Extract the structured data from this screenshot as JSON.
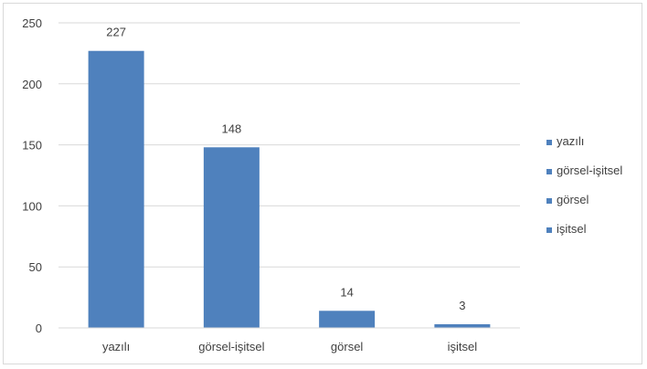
{
  "chart_data": {
    "type": "bar",
    "categories": [
      "yazılı",
      "görsel-işitsel",
      "görsel",
      "işitsel"
    ],
    "values": [
      227,
      148,
      14,
      3
    ],
    "ylim": [
      0,
      250
    ],
    "yticks": [
      0,
      50,
      100,
      150,
      200,
      250
    ],
    "grid": true,
    "legend": {
      "position": "right",
      "entries": [
        "yazılı",
        "görsel-işitsel",
        "görsel",
        "işitsel"
      ]
    },
    "data_labels": [
      "227",
      "148",
      "14",
      "3"
    ],
    "colors": {
      "bar": "#4f81bd",
      "grid": "#d9d9d9",
      "text": "#404040"
    },
    "title": "",
    "xlabel": "",
    "ylabel": ""
  }
}
